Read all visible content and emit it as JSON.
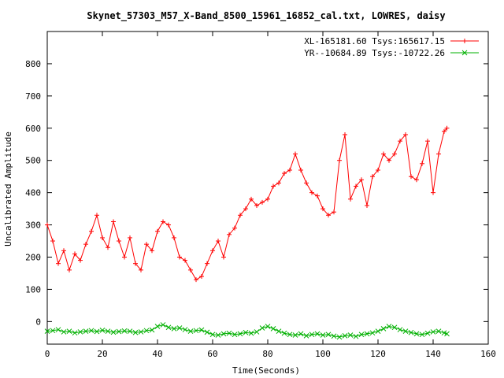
{
  "chart_data": {
    "type": "line",
    "title": "Skynet_57303_M57_X-Band_8500_15961_16852_cal.txt, LOWRES, daisy",
    "xlabel": "Time(Seconds)",
    "ylabel": "Uncalibrated Amplitude",
    "xlim": [
      0,
      160
    ],
    "ylim": [
      -70,
      900
    ],
    "x_ticks": [
      "0",
      "20",
      "40",
      "60",
      "80",
      "100",
      "120",
      "140",
      "160"
    ],
    "y_ticks": [
      "0",
      "100",
      "200",
      "300",
      "400",
      "500",
      "600",
      "700",
      "800"
    ],
    "legend_position": "top-right",
    "series": [
      {
        "name": "XL-165181.60 Tsys:165617.15",
        "color": "#ff0000",
        "marker": "plus",
        "x": [
          0,
          2,
          4,
          6,
          8,
          10,
          12,
          14,
          16,
          18,
          20,
          22,
          24,
          26,
          28,
          30,
          32,
          34,
          36,
          38,
          40,
          42,
          44,
          46,
          48,
          50,
          52,
          54,
          56,
          58,
          60,
          62,
          64,
          66,
          68,
          70,
          72,
          74,
          76,
          78,
          80,
          82,
          84,
          86,
          88,
          90,
          92,
          94,
          96,
          98,
          100,
          102,
          104,
          106,
          108,
          110,
          112,
          114,
          116,
          118,
          120,
          122,
          124,
          126,
          128,
          130,
          132,
          134,
          136,
          138,
          140,
          142,
          144,
          145
        ],
        "values": [
          300,
          250,
          180,
          220,
          160,
          210,
          190,
          240,
          280,
          330,
          260,
          230,
          310,
          250,
          200,
          260,
          180,
          160,
          240,
          220,
          280,
          310,
          300,
          260,
          200,
          190,
          160,
          130,
          140,
          180,
          220,
          250,
          200,
          270,
          290,
          330,
          350,
          380,
          360,
          370,
          380,
          420,
          430,
          460,
          470,
          520,
          470,
          430,
          400,
          390,
          350,
          330,
          340,
          500,
          580,
          380,
          420,
          440,
          360,
          450,
          470,
          520,
          500,
          520,
          560,
          580,
          450,
          440,
          490,
          560,
          400,
          520,
          590,
          600
        ]
      },
      {
        "name": "YR--10684.89 Tsys:-10722.26",
        "color": "#00b000",
        "marker": "x",
        "x": [
          0,
          2,
          4,
          6,
          8,
          10,
          12,
          14,
          16,
          18,
          20,
          22,
          24,
          26,
          28,
          30,
          32,
          34,
          36,
          38,
          40,
          42,
          44,
          46,
          48,
          50,
          52,
          54,
          56,
          58,
          60,
          62,
          64,
          66,
          68,
          70,
          72,
          74,
          76,
          78,
          80,
          82,
          84,
          86,
          88,
          90,
          92,
          94,
          96,
          98,
          100,
          102,
          104,
          106,
          108,
          110,
          112,
          114,
          116,
          118,
          120,
          122,
          124,
          126,
          128,
          130,
          132,
          134,
          136,
          138,
          140,
          142,
          144,
          145
        ],
        "values": [
          -30,
          -28,
          -25,
          -32,
          -30,
          -35,
          -32,
          -30,
          -28,
          -31,
          -27,
          -30,
          -33,
          -31,
          -29,
          -30,
          -34,
          -32,
          -28,
          -26,
          -15,
          -10,
          -18,
          -22,
          -20,
          -25,
          -30,
          -28,
          -26,
          -33,
          -40,
          -42,
          -38,
          -36,
          -40,
          -38,
          -34,
          -36,
          -32,
          -20,
          -15,
          -22,
          -30,
          -36,
          -40,
          -42,
          -38,
          -44,
          -40,
          -38,
          -42,
          -40,
          -45,
          -48,
          -44,
          -42,
          -46,
          -40,
          -38,
          -35,
          -30,
          -22,
          -15,
          -18,
          -25,
          -30,
          -34,
          -38,
          -40,
          -36,
          -32,
          -30,
          -35,
          -38
        ]
      }
    ]
  }
}
